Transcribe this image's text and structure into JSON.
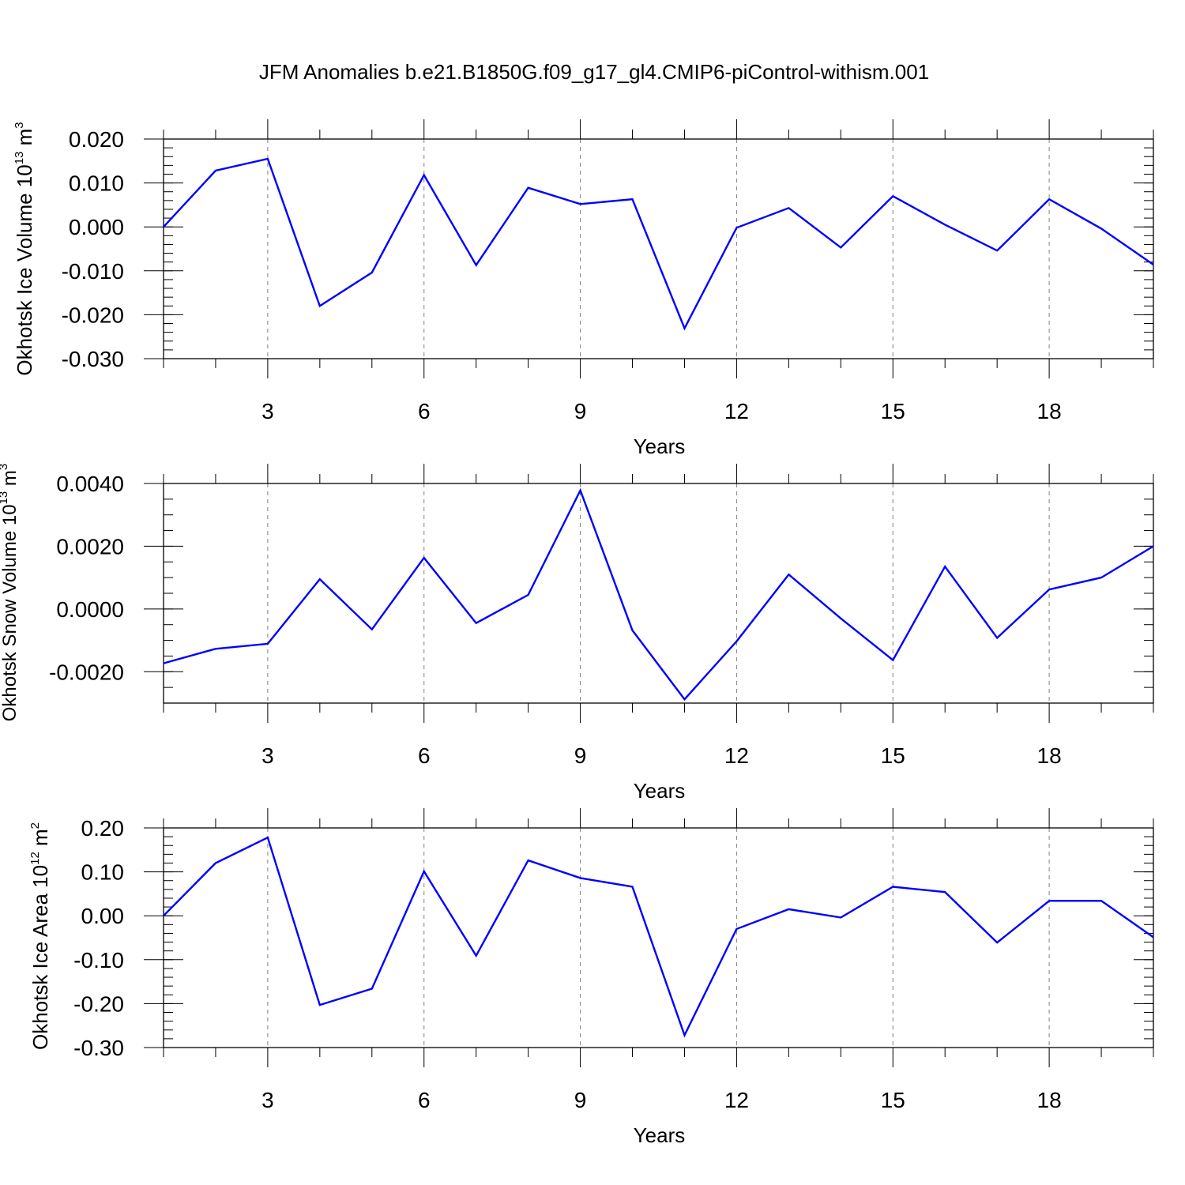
{
  "chart_title": "JFM Anomalies b.e21.B1850G.f09_g17_gl4.CMIP6-piControl-withism.001",
  "colors": {
    "line": "#0000ff",
    "axis": "#000000",
    "grid": "#808080"
  },
  "chart_data": [
    {
      "type": "line",
      "name": "ice-volume",
      "ylabel": "Okhotsk Ice Volume 10",
      "ylabel_exp": "13",
      "ylabel_unit": " m",
      "ylabel_unit_exp": "3",
      "xlabel": "Years",
      "x": [
        1,
        2,
        3,
        4,
        5,
        6,
        7,
        8,
        9,
        10,
        11,
        12,
        13,
        14,
        15,
        16,
        17,
        18,
        19,
        20
      ],
      "values": [
        0.0,
        0.0128,
        0.0155,
        -0.018,
        -0.0104,
        0.0118,
        -0.0087,
        0.0089,
        0.0052,
        0.0063,
        -0.0231,
        -0.0002,
        0.0043,
        -0.0047,
        0.007,
        0.0005,
        -0.0054,
        0.0063,
        -0.0004,
        -0.0086
      ],
      "xlim": [
        1,
        20
      ],
      "ylim": [
        -0.03,
        0.02
      ],
      "yticks": [
        -0.03,
        -0.02,
        -0.01,
        0.0,
        0.01,
        0.02
      ],
      "ytick_labels": [
        "-0.030",
        "-0.020",
        "-0.010",
        "0.000",
        "0.010",
        "0.020"
      ],
      "yminor": 0.002,
      "xticks": [
        3,
        6,
        9,
        12,
        15,
        18
      ],
      "xtick_labels": [
        "3",
        "6",
        "9",
        "12",
        "15",
        "18"
      ]
    },
    {
      "type": "line",
      "name": "snow-volume",
      "ylabel": "Okhotsk Snow Volume 10",
      "ylabel_exp": "13",
      "ylabel_unit": " m",
      "ylabel_unit_exp": "3",
      "xlabel": "Years",
      "x": [
        1,
        2,
        3,
        4,
        5,
        6,
        7,
        8,
        9,
        10,
        11,
        12,
        13,
        14,
        15,
        16,
        17,
        18,
        19,
        20
      ],
      "values": [
        -0.00173,
        -0.00127,
        -0.00111,
        0.00095,
        -0.00065,
        0.00163,
        -0.00045,
        0.00045,
        0.00378,
        -0.00068,
        -0.00288,
        -0.00103,
        0.0011,
        -0.0003,
        -0.00163,
        0.00135,
        -0.00092,
        0.00062,
        0.001,
        0.002
      ],
      "xlim": [
        1,
        20
      ],
      "ylim": [
        -0.003,
        0.004
      ],
      "yticks": [
        -0.002,
        0.0,
        0.002,
        0.004
      ],
      "ytick_labels": [
        "-0.0020",
        "0.0000",
        "0.0020",
        "0.0040"
      ],
      "yminor": 0.0005,
      "xticks": [
        3,
        6,
        9,
        12,
        15,
        18
      ],
      "xtick_labels": [
        "3",
        "6",
        "9",
        "12",
        "15",
        "18"
      ]
    },
    {
      "type": "line",
      "name": "ice-area",
      "ylabel": "Okhotsk Ice Area 10",
      "ylabel_exp": "12",
      "ylabel_unit": " m",
      "ylabel_unit_exp": "2",
      "xlabel": "Years",
      "x": [
        1,
        2,
        3,
        4,
        5,
        6,
        7,
        8,
        9,
        10,
        11,
        12,
        13,
        14,
        15,
        16,
        17,
        18,
        19,
        20
      ],
      "values": [
        0.0,
        0.12,
        0.178,
        -0.203,
        -0.166,
        0.101,
        -0.091,
        0.126,
        0.086,
        0.066,
        -0.272,
        -0.03,
        0.015,
        -0.004,
        0.066,
        0.054,
        -0.061,
        0.034,
        0.034,
        -0.049
      ],
      "xlim": [
        1,
        20
      ],
      "ylim": [
        -0.3,
        0.2
      ],
      "yticks": [
        -0.3,
        -0.2,
        -0.1,
        0.0,
        0.1,
        0.2
      ],
      "ytick_labels": [
        "-0.30",
        "-0.20",
        "-0.10",
        "0.00",
        "0.10",
        "0.20"
      ],
      "yminor": 0.02,
      "xticks": [
        3,
        6,
        9,
        12,
        15,
        18
      ],
      "xtick_labels": [
        "3",
        "6",
        "9",
        "12",
        "15",
        "18"
      ]
    }
  ]
}
